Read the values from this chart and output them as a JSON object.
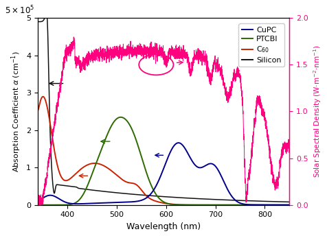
{
  "title": "",
  "xlabel": "Wavelength (nm)",
  "ylabel_left": "Absorption Coefficient $\\alpha$ (cm$^{-1}$)",
  "ylabel_right": "Solar Spectral Density (W$\\cdot$m$^{-2}$$\\cdot$nm$^{-1}$)",
  "xlim": [
    340,
    850
  ],
  "ylim_left": [
    0,
    500000.0
  ],
  "ylim_right": [
    0,
    2.0
  ],
  "yticks_left": [
    0,
    100000.0,
    200000.0,
    300000.0,
    400000.0,
    500000.0
  ],
  "yticks_right": [
    0,
    0.5,
    1.0,
    1.5,
    2.0
  ],
  "colors": {
    "CuPC": "#00008B",
    "PTCBI": "#2d6a00",
    "C60": "#cc2200",
    "Silicon": "#111111",
    "Solar": "#ff007f"
  },
  "xticks": [
    400,
    500,
    600,
    700,
    800
  ]
}
